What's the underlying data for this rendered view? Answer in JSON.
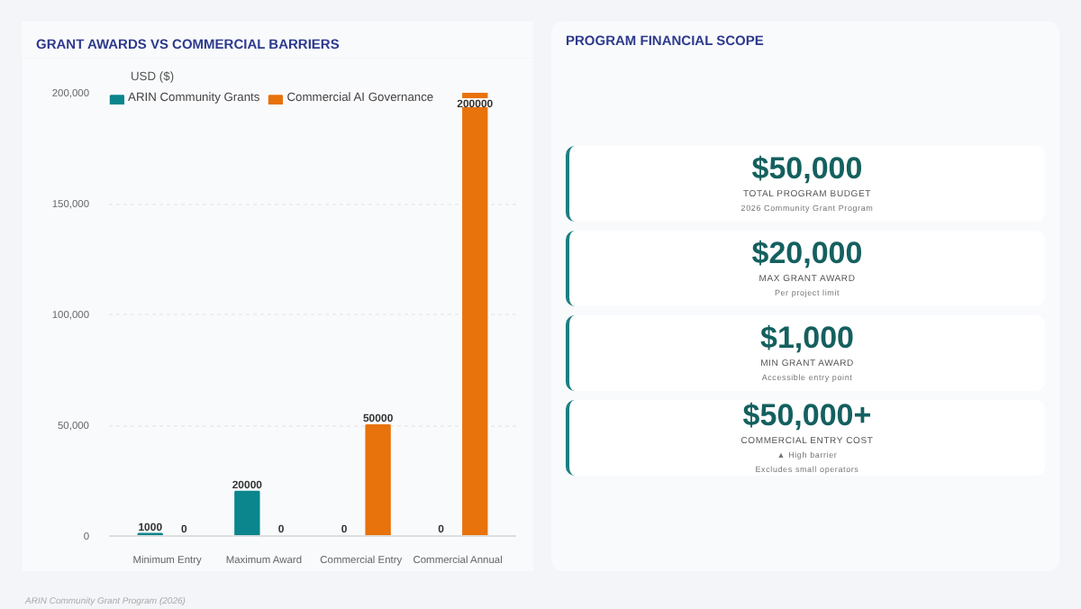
{
  "chart_data": [
    {
      "type": "bar",
      "title": "GRANT AWARDS VS COMMERCIAL BARRIERS",
      "ylabel": "USD ($)",
      "categories": [
        "Minimum Entry",
        "Maximum Award",
        "Commercial Entry",
        "Commercial Annual"
      ],
      "series": [
        {
          "name": "ARIN Community Grants",
          "color": "#0a868c",
          "values": [
            1000,
            20000,
            0,
            0
          ]
        },
        {
          "name": "Commercial AI Governance",
          "color": "#e8720c",
          "values": [
            0,
            0,
            50000,
            200000
          ]
        }
      ],
      "ylim": [
        0,
        200000
      ],
      "yticks": [
        0,
        {
          "value": 50000,
          "label": "50,000"
        },
        {
          "value": 100000,
          "label": "100,000"
        },
        {
          "value": 150000,
          "label": "150,000"
        },
        {
          "value": 200000,
          "label": "200,000"
        }
      ],
      "grid": "y",
      "legend": "top",
      "data_labels": true,
      "annotations": [
        "ARIN Community Grant Program (2026)"
      ]
    },
    {
      "type": "other",
      "title": "PROGRAM FINANCIAL SCOPE",
      "annotations": [
        "$50,000\nTOTAL PROGRAM BUDGET\n2026 Community Grant Program",
        "$20,000\nMAX GRANT AWARD\nPer project limit",
        "$1,000\nMIN GRANT AWARD\nAccessible entry point",
        "$50,000+\nCOMMERCIAL ENTRY COST\n▲ High barrier\nExcludes small operators"
      ]
    }
  ]
}
